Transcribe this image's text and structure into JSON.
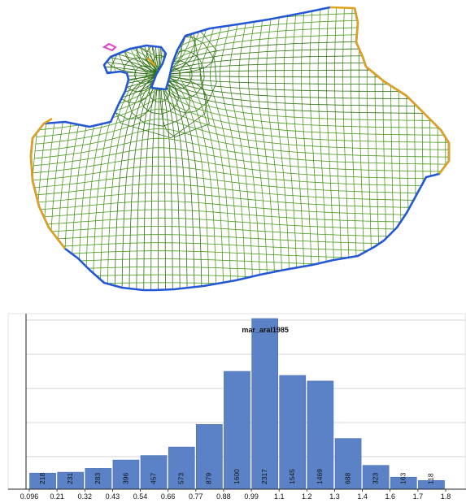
{
  "mesh": {
    "colors": {
      "grid": "#4b9a1e",
      "grid_dense": "#2c6e12",
      "boundary_main": "#2457d6",
      "boundary_open": "#e0a21c",
      "boundary_small": "#e040c8"
    }
  },
  "chart_data": {
    "type": "bar",
    "title": "mar_aral1985",
    "xlabel": "",
    "ylabel": "",
    "x_ticks": [
      "0.096",
      "0.21",
      "0.32",
      "0.43",
      "0.54",
      "0.66",
      "0.77",
      "0.88",
      "0.99",
      "1.1",
      "1.2",
      "1.3",
      "1.4",
      "1.6",
      "1.7",
      "1.8"
    ],
    "values": [
      218,
      231,
      283,
      396,
      457,
      573,
      879,
      1600,
      2317,
      1545,
      1469,
      688,
      323,
      163,
      118
    ],
    "ylim": [
      0,
      2317
    ],
    "grid": "horizontal",
    "legend": "none",
    "colors": {
      "bar": "#5b82c6",
      "bar_edge": "#4a6fb0",
      "grid": "#c8c8c8"
    }
  }
}
